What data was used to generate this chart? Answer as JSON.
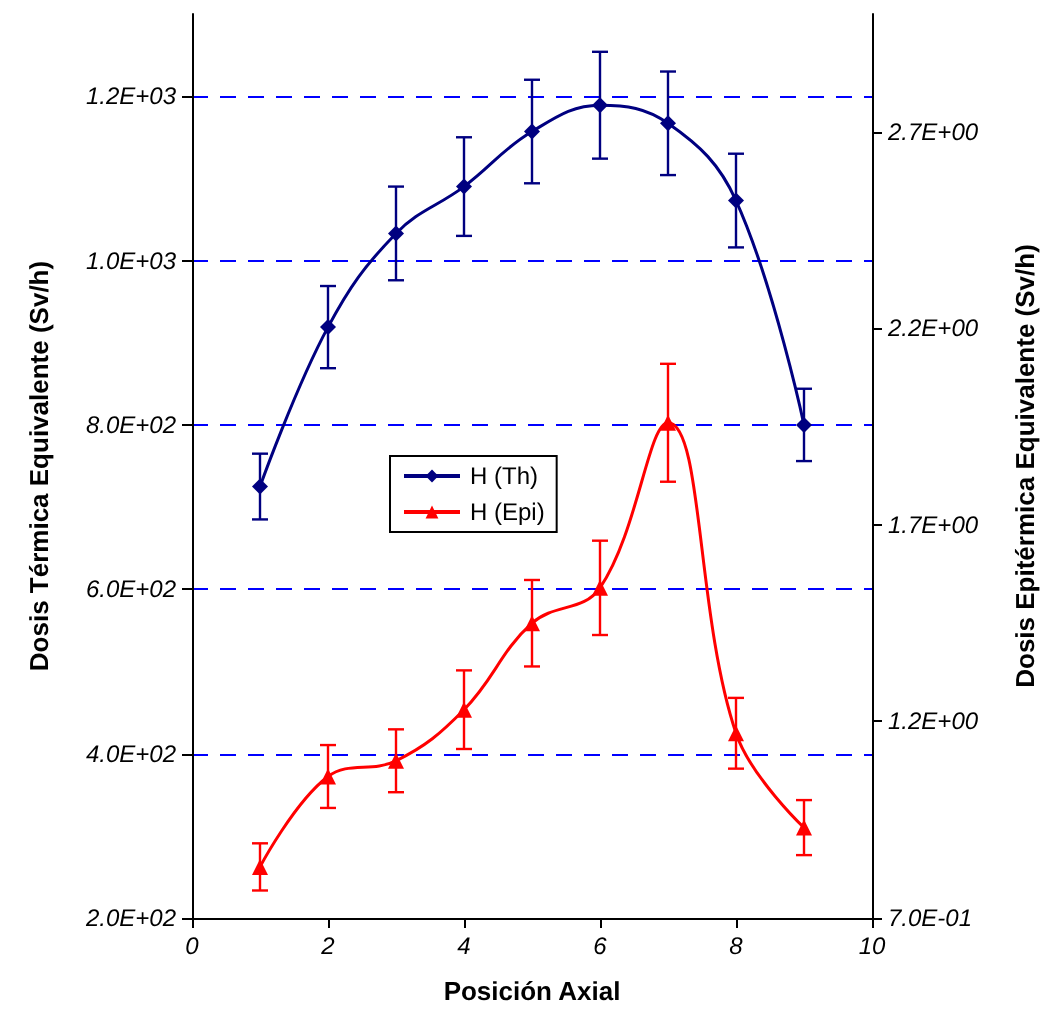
{
  "chart_data": {
    "type": "line",
    "xlabel": "Posición Axial",
    "ylabel": "Dosis Térmica Equivalente (Sv/h)",
    "y2label": "Dosis Epitérmica Equivalente (Sv/h)",
    "x": [
      1,
      2,
      3,
      4,
      5,
      6,
      7,
      8,
      9
    ],
    "series": [
      {
        "name": "H (Th)",
        "color": "#000080",
        "marker": "diamond",
        "values": [
          725,
          919,
          1033,
          1090,
          1157,
          1189,
          1167,
          1073,
          800
        ],
        "errors": [
          40,
          50,
          57,
          60,
          63,
          65,
          63,
          57,
          44
        ]
      },
      {
        "name": "H (Epi)",
        "color": "#ff0000",
        "marker": "triangle",
        "axis": "y2",
        "values": [
          0.83,
          1.06,
          1.1,
          1.23,
          1.45,
          1.54,
          1.96,
          1.17,
          0.93
        ],
        "errors": [
          0.06,
          0.08,
          0.08,
          0.1,
          0.11,
          0.12,
          0.15,
          0.09,
          0.07
        ]
      }
    ],
    "xlim": [
      0,
      10
    ],
    "xticks": [
      0,
      2,
      4,
      6,
      8,
      10
    ],
    "ylim": [
      200,
      1300
    ],
    "yticks": [
      {
        "value": 200,
        "label": "2.0E+02"
      },
      {
        "value": 400,
        "label": "4.0E+02"
      },
      {
        "value": 600,
        "label": "6.0E+02"
      },
      {
        "value": 800,
        "label": "8.0E+02"
      },
      {
        "value": 1000,
        "label": "1.0E+03"
      },
      {
        "value": 1200,
        "label": "1.2E+03"
      }
    ],
    "y2lim": [
      0.7,
      3.0
    ],
    "y2ticks": [
      {
        "value": 0.7,
        "label": "7.0E-01"
      },
      {
        "value": 1.2,
        "label": "1.2E+00"
      },
      {
        "value": 1.7,
        "label": "1.7E+00"
      },
      {
        "value": 2.2,
        "label": "2.2E+00"
      },
      {
        "value": 2.7,
        "label": "2.7E+00"
      }
    ],
    "grid": "y",
    "legend": "left",
    "line_style": "solid"
  }
}
